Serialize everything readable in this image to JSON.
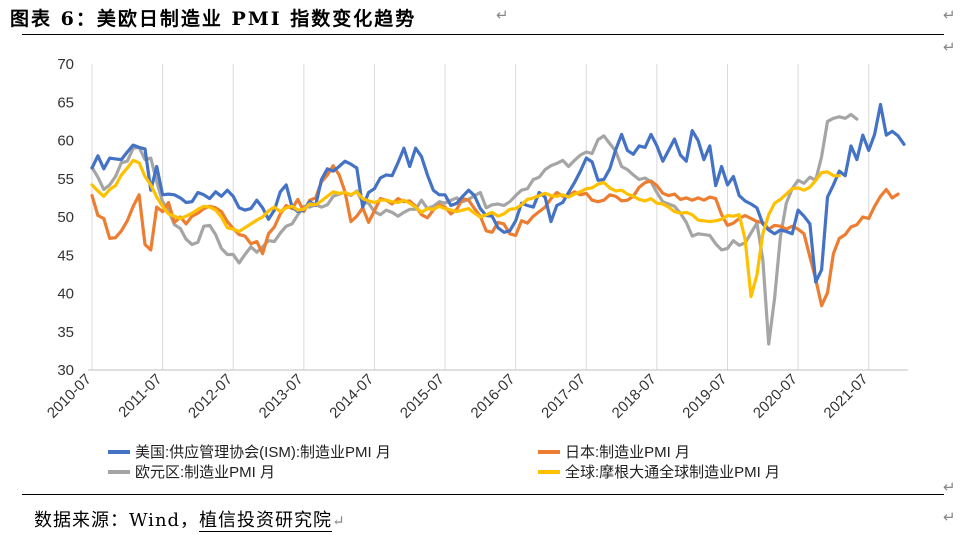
{
  "title": "图表 6：美欧日制造业 PMI 指数变化趋势",
  "source_label": "数据来源：Wind，",
  "source_inst": "植信投资研究院",
  "return_mark": "↵",
  "chart_data": {
    "type": "line",
    "title": "图表 6：美欧日制造业 PMI 指数变化趋势",
    "xlabel": "",
    "ylabel": "",
    "ylim": [
      30,
      70
    ],
    "yticks": [
      30,
      35,
      40,
      45,
      50,
      55,
      60,
      65,
      70
    ],
    "xticks": [
      "2010-07",
      "2011-07",
      "2012-07",
      "2013-07",
      "2014-07",
      "2015-07",
      "2016-07",
      "2017-07",
      "2018-07",
      "2019-07",
      "2020-07",
      "2021-07"
    ],
    "grid": "vertical",
    "legend_position": "bottom",
    "x_start": "2010-07",
    "series": [
      {
        "name": "美国:供应管理协会(ISM):制造业PMI 月",
        "color": "#4472C4",
        "values": [
          56.4,
          58.0,
          56.3,
          57.7,
          57.6,
          57.5,
          58.5,
          59.4,
          59.1,
          58.9,
          53.5,
          56.6,
          52.9,
          53.0,
          52.9,
          52.5,
          51.9,
          52.0,
          53.2,
          52.9,
          52.4,
          53.3,
          52.7,
          53.5,
          52.7,
          51.2,
          50.9,
          51.1,
          52.2,
          51.2,
          49.7,
          50.9,
          53.3,
          54.2,
          51.3,
          50.7,
          50.9,
          52.0,
          51.5,
          54.9,
          56.3,
          56.0,
          56.6,
          57.3,
          56.9,
          56.4,
          51.3,
          53.2,
          53.7,
          55.1,
          55.5,
          55.4,
          57.1,
          59.0,
          56.6,
          59.0,
          57.9,
          55.5,
          53.5,
          52.9,
          52.9,
          51.5,
          51.8,
          52.7,
          53.5,
          52.8,
          51.1,
          50.2,
          50.1,
          48.6,
          48.0,
          48.2,
          49.5,
          51.8,
          51.5,
          51.3,
          53.2,
          52.6,
          49.4,
          51.5,
          51.9,
          53.2,
          54.5,
          56.0,
          57.7,
          57.2,
          54.8,
          54.9,
          56.3,
          58.8,
          60.8,
          58.7,
          58.2,
          59.3,
          59.1,
          60.8,
          59.3,
          57.3,
          58.7,
          60.2,
          58.1,
          57.3,
          61.3,
          60.0,
          57.5,
          59.3,
          54.1,
          56.6,
          54.2,
          55.3,
          52.8,
          52.1,
          51.7,
          51.2,
          49.1,
          48.3,
          47.8,
          48.3,
          48.1,
          47.8,
          50.9,
          50.1,
          49.1,
          41.5,
          43.1,
          52.6,
          54.2,
          56.0,
          55.4,
          59.3,
          57.5,
          60.7,
          58.7,
          60.8,
          64.7,
          60.7,
          61.2,
          60.6,
          59.5
        ]
      },
      {
        "name": "日本:制造业PMI 月",
        "color": "#ED7D31",
        "values": [
          52.8,
          50.2,
          49.8,
          47.2,
          47.3,
          48.2,
          49.5,
          51.4,
          52.9,
          46.4,
          45.7,
          51.3,
          50.7,
          51.9,
          49.3,
          50.0,
          49.1,
          50.1,
          50.5,
          51.1,
          51.4,
          51.2,
          50.7,
          49.4,
          48.5,
          47.7,
          47.5,
          46.5,
          46.8,
          45.2,
          47.8,
          48.7,
          50.4,
          51.5,
          51.1,
          52.3,
          50.7,
          52.2,
          52.5,
          54.6,
          55.5,
          56.7,
          55.5,
          53.3,
          49.4,
          50.1,
          51.2,
          49.3,
          50.8,
          52.4,
          52.2,
          51.7,
          52.4,
          52.0,
          52.1,
          51.4,
          50.3,
          49.9,
          50.9,
          51.6,
          51.3,
          50.4,
          51.0,
          52.4,
          52.2,
          51.1,
          50.1,
          48.2,
          48.0,
          49.3,
          49.1,
          47.8,
          47.6,
          49.5,
          49.2,
          50.1,
          50.7,
          51.3,
          52.4,
          53.2,
          52.7,
          52.8,
          53.3,
          52.9,
          53.1,
          52.2,
          52.0,
          52.2,
          52.9,
          52.7,
          52.1,
          52.2,
          52.7,
          53.9,
          54.5,
          54.7,
          54.1,
          53.1,
          52.8,
          53.0,
          52.3,
          52.5,
          52.2,
          52.5,
          52.2,
          52.6,
          52.4,
          50.3,
          48.9,
          49.2,
          49.8,
          50.2,
          49.8,
          49.4,
          49.3,
          48.4,
          48.9,
          48.8,
          48.4,
          48.8,
          48.4,
          47.8,
          44.8,
          41.9,
          38.4,
          40.1,
          45.2,
          47.2,
          47.7,
          48.7,
          49.0,
          50.0,
          49.8,
          51.4,
          52.7,
          53.6,
          52.5,
          53.0
        ]
      },
      {
        "name": "欧元区:制造业PMI 月",
        "color": "#A5A5A5",
        "values": [
          56.5,
          55.2,
          53.6,
          54.2,
          55.3,
          57.1,
          57.3,
          59.0,
          59.1,
          57.5,
          57.7,
          54.6,
          52.0,
          50.9,
          49.0,
          48.5,
          47.1,
          46.4,
          46.7,
          48.8,
          48.9,
          47.7,
          45.9,
          45.1,
          45.1,
          44.0,
          45.1,
          46.1,
          45.4,
          46.1,
          46.9,
          46.8,
          47.9,
          48.8,
          49.1,
          50.3,
          51.4,
          51.3,
          51.6,
          51.3,
          51.6,
          52.7,
          53.0,
          53.2,
          52.8,
          53.4,
          51.9,
          51.8,
          50.7,
          50.3,
          50.9,
          50.6,
          50.1,
          50.6,
          51.0,
          51.0,
          52.2,
          51.1,
          51.4,
          52.0,
          51.8,
          52.2,
          52.5,
          52.0,
          52.3,
          52.8,
          53.2,
          51.2,
          51.6,
          51.7,
          51.5,
          52.0,
          52.8,
          53.5,
          53.7,
          54.9,
          55.2,
          56.2,
          56.7,
          57.0,
          57.4,
          56.6,
          57.4,
          58.1,
          58.5,
          58.3,
          60.1,
          60.6,
          59.6,
          58.6,
          56.6,
          56.2,
          55.5,
          54.9,
          55.1,
          54.6,
          53.2,
          52.0,
          51.7,
          51.4,
          50.5,
          49.3,
          47.5,
          47.8,
          47.7,
          47.6,
          46.5,
          45.7,
          45.9,
          46.9,
          46.3,
          46.6,
          47.9,
          49.2,
          44.5,
          33.4,
          39.4,
          47.4,
          51.8,
          53.7,
          54.8,
          54.4,
          55.2,
          54.8,
          57.9,
          62.5,
          62.9,
          63.1,
          62.9,
          63.4,
          62.8
        ]
      },
      {
        "name": "全球:摩根大通全球制造业PMI 月",
        "color": "#FFC000",
        "values": [
          54.2,
          53.4,
          52.7,
          53.6,
          54.1,
          55.5,
          56.4,
          57.4,
          57.1,
          55.3,
          54.2,
          52.6,
          51.4,
          50.4,
          50.1,
          49.8,
          50.1,
          50.5,
          51.0,
          51.4,
          51.3,
          50.9,
          50.0,
          48.6,
          48.4,
          48.1,
          48.6,
          49.1,
          49.6,
          50.0,
          50.8,
          51.3,
          50.7,
          51.2,
          51.4,
          50.9,
          51.0,
          51.7,
          51.6,
          52.1,
          52.7,
          53.3,
          53.1,
          53.2,
          52.9,
          53.3,
          52.4,
          52.1,
          51.9,
          52.2,
          52.2,
          52.0,
          51.9,
          52.2,
          51.8,
          51.3,
          50.6,
          51.1,
          51.0,
          51.4,
          51.1,
          50.9,
          50.7,
          50.9,
          51.1,
          50.5,
          50.0,
          50.3,
          50.6,
          50.1,
          50.4,
          51.0,
          51.1,
          51.6,
          52.3,
          52.5,
          52.8,
          53.1,
          52.8,
          52.7,
          52.9,
          52.6,
          53.0,
          53.3,
          53.7,
          53.8,
          54.3,
          54.5,
          53.8,
          53.4,
          53.5,
          53.0,
          52.7,
          52.3,
          52.1,
          52.4,
          51.8,
          51.7,
          51.3,
          50.7,
          50.5,
          50.6,
          50.3,
          49.6,
          49.5,
          49.4,
          49.5,
          49.7,
          50.2,
          50.1,
          50.3,
          47.1,
          39.6,
          42.4,
          47.8,
          50.3,
          51.8,
          52.3,
          53.0,
          53.7,
          53.8,
          53.5,
          53.9,
          54.8,
          55.8,
          55.9,
          55.4,
          55.4
        ]
      }
    ]
  }
}
